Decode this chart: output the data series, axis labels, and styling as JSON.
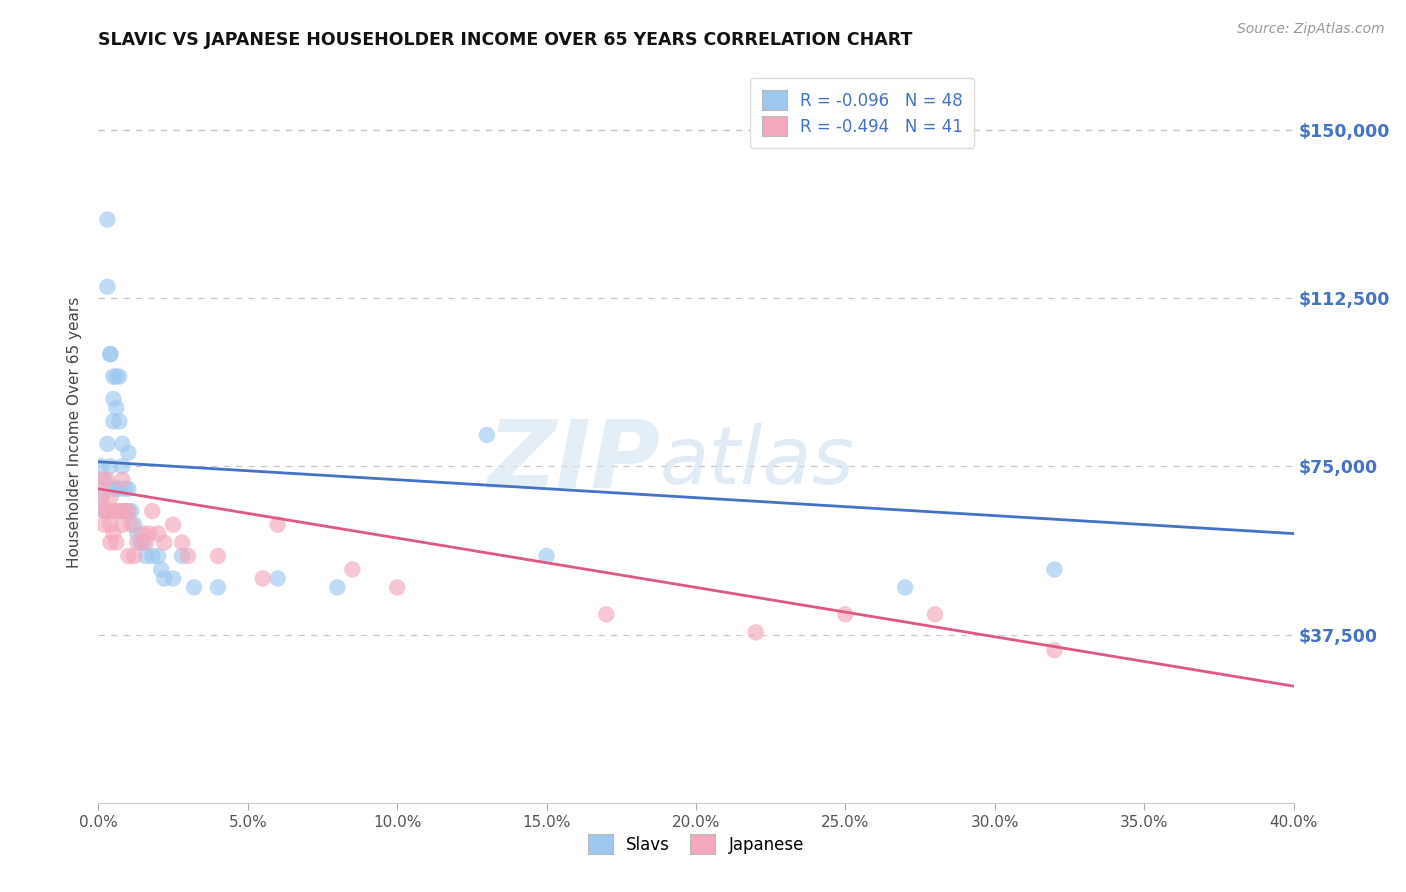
{
  "title": "SLAVIC VS JAPANESE HOUSEHOLDER INCOME OVER 65 YEARS CORRELATION CHART",
  "source": "Source: ZipAtlas.com",
  "ylabel": "Householder Income Over 65 years",
  "xlabel_ticks": [
    "0.0%",
    "5.0%",
    "10.0%",
    "15.0%",
    "20.0%",
    "25.0%",
    "30.0%",
    "35.0%",
    "40.0%"
  ],
  "ytick_labels": [
    "$37,500",
    "$75,000",
    "$112,500",
    "$150,000"
  ],
  "ytick_values": [
    37500,
    75000,
    112500,
    150000
  ],
  "xlim": [
    0.0,
    0.4
  ],
  "ylim": [
    0,
    165000
  ],
  "slavs_R": "-0.096",
  "slavs_N": "48",
  "japanese_R": "-0.494",
  "japanese_N": "41",
  "slavs_color": "#9EC8F0",
  "japanese_color": "#F4A8BC",
  "line_slavs_color": "#4472C4",
  "line_japanese_color": "#E05880",
  "background_color": "#FFFFFF",
  "grid_color": "#C8C8C8",
  "watermark_zip": "ZIP",
  "watermark_atlas": "atlas",
  "slavs_x": [
    0.001,
    0.001,
    0.002,
    0.002,
    0.003,
    0.003,
    0.003,
    0.004,
    0.004,
    0.004,
    0.005,
    0.005,
    0.005,
    0.005,
    0.006,
    0.006,
    0.006,
    0.007,
    0.007,
    0.007,
    0.008,
    0.008,
    0.008,
    0.009,
    0.009,
    0.01,
    0.01,
    0.01,
    0.011,
    0.012,
    0.013,
    0.014,
    0.015,
    0.016,
    0.018,
    0.02,
    0.021,
    0.022,
    0.025,
    0.028,
    0.032,
    0.04,
    0.06,
    0.08,
    0.13,
    0.15,
    0.27,
    0.32
  ],
  "slavs_y": [
    75000,
    68000,
    72000,
    65000,
    130000,
    115000,
    80000,
    100000,
    100000,
    75000,
    95000,
    90000,
    85000,
    70000,
    95000,
    88000,
    70000,
    95000,
    85000,
    70000,
    80000,
    75000,
    65000,
    70000,
    65000,
    78000,
    70000,
    65000,
    65000,
    62000,
    60000,
    58000,
    58000,
    55000,
    55000,
    55000,
    52000,
    50000,
    50000,
    55000,
    48000,
    48000,
    50000,
    48000,
    82000,
    55000,
    48000,
    52000
  ],
  "japanese_x": [
    0.001,
    0.001,
    0.002,
    0.002,
    0.003,
    0.003,
    0.004,
    0.004,
    0.004,
    0.005,
    0.005,
    0.006,
    0.006,
    0.007,
    0.008,
    0.008,
    0.009,
    0.01,
    0.01,
    0.011,
    0.012,
    0.013,
    0.015,
    0.016,
    0.017,
    0.018,
    0.02,
    0.022,
    0.025,
    0.028,
    0.03,
    0.04,
    0.055,
    0.06,
    0.085,
    0.1,
    0.17,
    0.22,
    0.25,
    0.28,
    0.32
  ],
  "japanese_y": [
    72000,
    68000,
    65000,
    62000,
    72000,
    65000,
    68000,
    62000,
    58000,
    65000,
    60000,
    65000,
    58000,
    65000,
    72000,
    62000,
    65000,
    65000,
    55000,
    62000,
    55000,
    58000,
    60000,
    58000,
    60000,
    65000,
    60000,
    58000,
    62000,
    58000,
    55000,
    55000,
    50000,
    62000,
    52000,
    48000,
    42000,
    38000,
    42000,
    42000,
    34000
  ],
  "slavs_line_x0": 0.0,
  "slavs_line_y0": 76000,
  "slavs_line_x1": 0.4,
  "slavs_line_y1": 60000,
  "japanese_line_x0": 0.0,
  "japanese_line_y0": 70000,
  "japanese_line_x1": 0.4,
  "japanese_line_y1": 26000
}
